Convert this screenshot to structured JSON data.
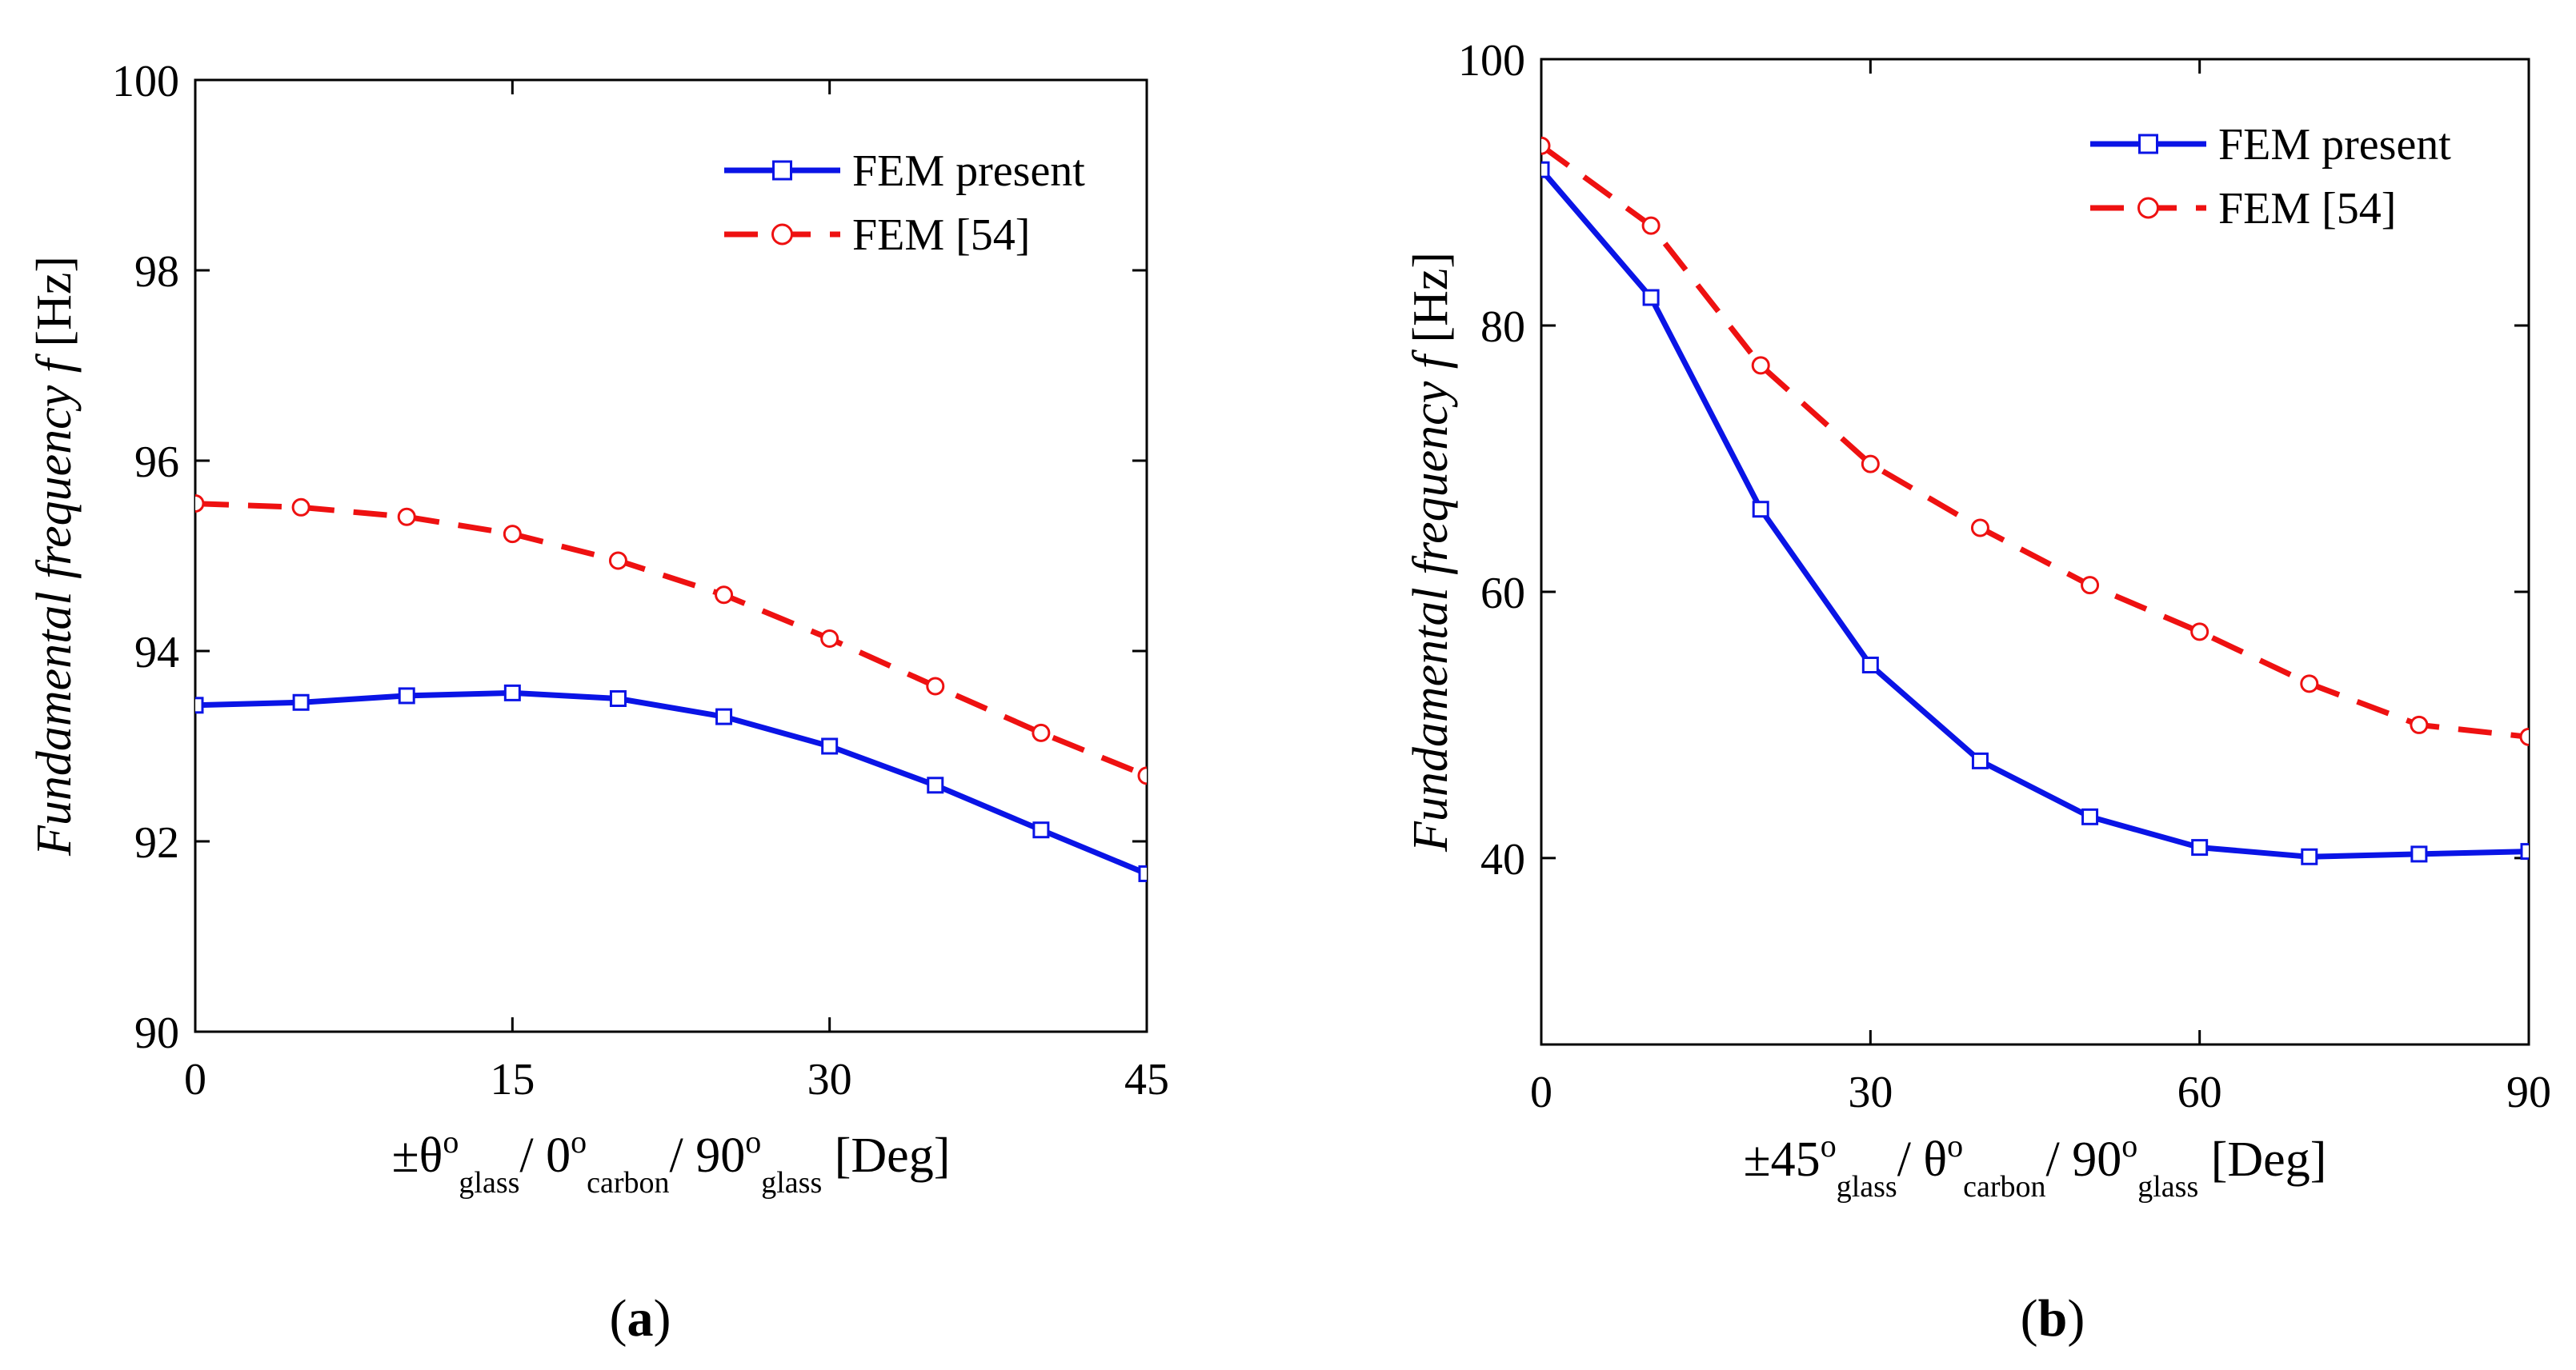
{
  "chart_data": [
    {
      "type": "line",
      "panel_label": "a",
      "xlabel": {
        "base": "±θ",
        "deg1": "o",
        "sub1": "glass",
        "sep1": "/ 0",
        "deg2": "o",
        "sub2": "carbon",
        "sep2": "/ 90",
        "deg3": "o",
        "sub3": "glass",
        "unit": " [Deg]"
      },
      "ylabel": {
        "italic": "Fundamental frequency f",
        "unit": " [Hz]"
      },
      "xlim": [
        0,
        45
      ],
      "ylim": [
        90,
        100
      ],
      "xticks": [
        0,
        15,
        30,
        45
      ],
      "yticks": [
        90,
        92,
        94,
        96,
        98,
        100
      ],
      "legend_position": "top-right",
      "series": [
        {
          "name": "FEM present",
          "color": "#0a14e6",
          "marker": "square",
          "dash": "solid",
          "x": [
            0,
            5,
            10,
            15,
            20,
            25,
            30,
            35,
            40,
            45
          ],
          "y": [
            93.43,
            93.46,
            93.53,
            93.56,
            93.5,
            93.31,
            93.0,
            92.59,
            92.12,
            91.66
          ]
        },
        {
          "name": "FEM [54]",
          "color": "#ee1111",
          "marker": "circle",
          "dash": "dashed",
          "x": [
            0,
            5,
            10,
            15,
            20,
            25,
            30,
            35,
            40,
            45
          ],
          "y": [
            95.55,
            95.51,
            95.41,
            95.23,
            94.95,
            94.59,
            94.13,
            93.63,
            93.14,
            92.69
          ]
        }
      ]
    },
    {
      "type": "line",
      "panel_label": "b",
      "xlabel": {
        "base": "±45",
        "deg1": "o",
        "sub1": "glass",
        "sep1": "/ θ",
        "deg2": "o",
        "sub2": "carbon",
        "sep2": "/ 90",
        "deg3": "o",
        "sub3": "glass",
        "unit": " [Deg]"
      },
      "ylabel": {
        "italic": "Fundamental frequency f",
        "unit": " [Hz]"
      },
      "xlim": [
        0,
        90
      ],
      "ylim": [
        26,
        100
      ],
      "xticks": [
        0,
        30,
        60,
        90
      ],
      "yticks": [
        40,
        60,
        80,
        100
      ],
      "legend_position": "top-right",
      "series": [
        {
          "name": "FEM present",
          "color": "#0a14e6",
          "marker": "square",
          "dash": "solid",
          "x": [
            0,
            10,
            20,
            30,
            40,
            50,
            60,
            70,
            80,
            90
          ],
          "y": [
            91.7,
            82.1,
            66.2,
            54.5,
            47.3,
            43.1,
            40.8,
            40.1,
            40.3,
            40.5
          ]
        },
        {
          "name": "FEM [54]",
          "color": "#ee1111",
          "marker": "circle",
          "dash": "dashed",
          "x": [
            0,
            10,
            20,
            30,
            40,
            50,
            60,
            70,
            80,
            90
          ],
          "y": [
            93.5,
            87.5,
            77.0,
            69.6,
            64.8,
            60.5,
            57.0,
            53.1,
            50.0,
            49.1
          ]
        }
      ]
    }
  ]
}
